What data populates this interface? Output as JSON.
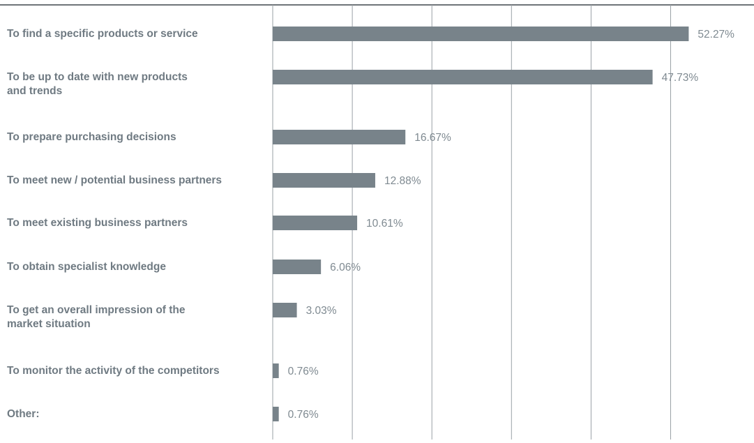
{
  "chart_data": {
    "type": "bar",
    "orientation": "horizontal",
    "categories": [
      [
        "To find a specific products or service"
      ],
      [
        "To be up to date with new products",
        "and trends"
      ],
      [
        "To prepare purchasing decisions"
      ],
      [
        "To meet new / potential business partners"
      ],
      [
        "To meet existing business partners"
      ],
      [
        "To obtain specialist knowledge"
      ],
      [
        "To get an overall impression of the",
        "market situation"
      ],
      [
        "To monitor the activity of the competitors"
      ],
      [
        "Other:"
      ]
    ],
    "values": [
      52.27,
      47.73,
      16.67,
      12.88,
      10.61,
      6.06,
      3.03,
      0.76,
      0.76
    ],
    "value_labels": [
      "52.27%",
      "47.73%",
      "16.67%",
      "12.88%",
      "10.61%",
      "6.06%",
      "3.03%",
      "0.76%",
      "0.76%"
    ],
    "xlim": [
      0,
      60
    ],
    "grid": true,
    "title": "",
    "xlabel": "",
    "ylabel": ""
  },
  "colors": {
    "bar": "#78838a",
    "category_text": "#6f7a82",
    "value_text": "#7f8a91",
    "grid": "#9aa1a6",
    "top_rule": "#6f7479"
  }
}
